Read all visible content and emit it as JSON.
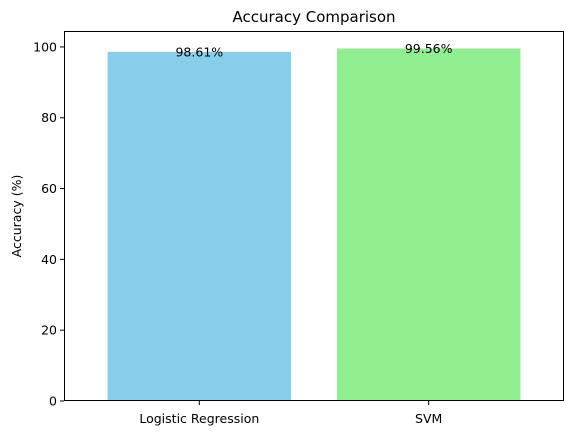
{
  "chart_data": {
    "type": "bar",
    "title": "Accuracy Comparison",
    "xlabel": "",
    "ylabel": "Accuracy (%)",
    "categories": [
      "Logistic Regression",
      "SVM"
    ],
    "values": [
      98.61,
      99.56
    ],
    "data_labels": [
      "98.61%",
      "99.56%"
    ],
    "colors": [
      "#87ceeb",
      "#90ee90"
    ],
    "ylim": [
      0,
      104.5
    ],
    "yticks": [
      0,
      20,
      40,
      60,
      80,
      100
    ],
    "grid": false,
    "legend": "none"
  }
}
